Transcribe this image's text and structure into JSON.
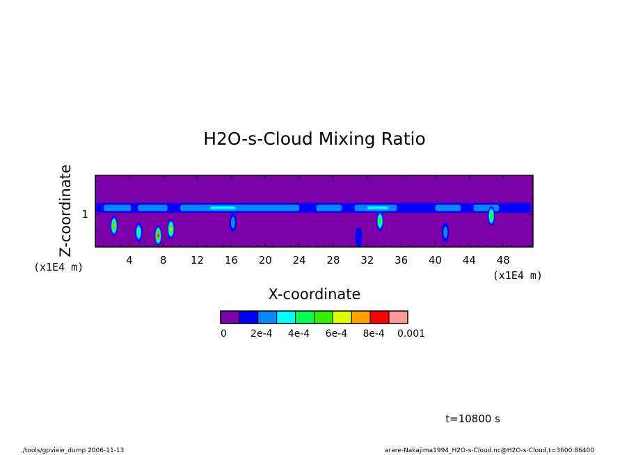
{
  "chart_data": {
    "type": "heatmap",
    "title": "H2O-s-Cloud Mixing Ratio",
    "xlabel": "X-coordinate",
    "ylabel": "Z-coordinate",
    "x_unit_label": "(x1E4 m)",
    "z_unit_label": "(x1E4 m)",
    "xlim": [
      0,
      51.5
    ],
    "zlim": [
      0,
      2.2
    ],
    "x_ticks": [
      4,
      8,
      12,
      16,
      20,
      24,
      28,
      32,
      36,
      40,
      44,
      48
    ],
    "z_ticks": [
      1
    ],
    "colorbar": {
      "levels": [
        0,
        0.0001,
        0.0002,
        0.0003,
        0.0004,
        0.0005,
        0.0006,
        0.0007,
        0.0008,
        0.0009,
        0.001
      ],
      "tick_labels": [
        "0",
        "2e-4",
        "4e-4",
        "6e-4",
        "8e-4",
        "0.001"
      ],
      "colors": [
        "#7b00a8",
        "#0000ff",
        "#0a88ff",
        "#00ffff",
        "#00ff55",
        "#33ee00",
        "#ddff00",
        "#ffa000",
        "#ff0000",
        "#ff9999"
      ]
    },
    "cloud_layer": {
      "z_base": 1.05,
      "z_top": 1.35,
      "segments": [
        {
          "x": [
            0.1,
            51.3
          ],
          "level": 1
        },
        {
          "x": [
            1.0,
            4.2
          ],
          "level": 2
        },
        {
          "x": [
            5.0,
            8.5
          ],
          "level": 2
        },
        {
          "x": [
            10.0,
            24.0
          ],
          "level": 2
        },
        {
          "x": [
            13.5,
            16.5
          ],
          "level": 3
        },
        {
          "x": [
            26.0,
            29.0
          ],
          "level": 2
        },
        {
          "x": [
            30.5,
            35.5
          ],
          "level": 2
        },
        {
          "x": [
            32.0,
            34.5
          ],
          "level": 3
        },
        {
          "x": [
            40.0,
            43.0
          ],
          "level": 2
        },
        {
          "x": [
            44.5,
            47.5
          ],
          "level": 2
        }
      ]
    },
    "cells": [
      {
        "x": 2.2,
        "z": 0.65,
        "levels": [
          1,
          2,
          3,
          4,
          5,
          7
        ]
      },
      {
        "x": 5.1,
        "z": 0.45,
        "levels": [
          1,
          2,
          3,
          4
        ]
      },
      {
        "x": 7.4,
        "z": 0.35,
        "levels": [
          1,
          2,
          3,
          4,
          5,
          7,
          8
        ]
      },
      {
        "x": 8.9,
        "z": 0.55,
        "levels": [
          1,
          2,
          3,
          4,
          5,
          6
        ]
      },
      {
        "x": 16.2,
        "z": 0.75,
        "levels": [
          1,
          2
        ]
      },
      {
        "x": 33.5,
        "z": 0.8,
        "levels": [
          1,
          2,
          3,
          4,
          5
        ]
      },
      {
        "x": 46.6,
        "z": 0.95,
        "levels": [
          1,
          2,
          3,
          4,
          5
        ]
      },
      {
        "x": 41.2,
        "z": 0.45,
        "levels": [
          1,
          2
        ]
      },
      {
        "x": 31.0,
        "z": 0.3,
        "levels": [
          1
        ]
      }
    ]
  },
  "annotations": {
    "time": "t=10800 s",
    "footer_left": "./tools/gpview_dump  2006-11-13",
    "footer_right": "arare-Nakajima1994_H2O-s-Cloud.nc@H2O-s-Cloud,t=3600:86400"
  }
}
